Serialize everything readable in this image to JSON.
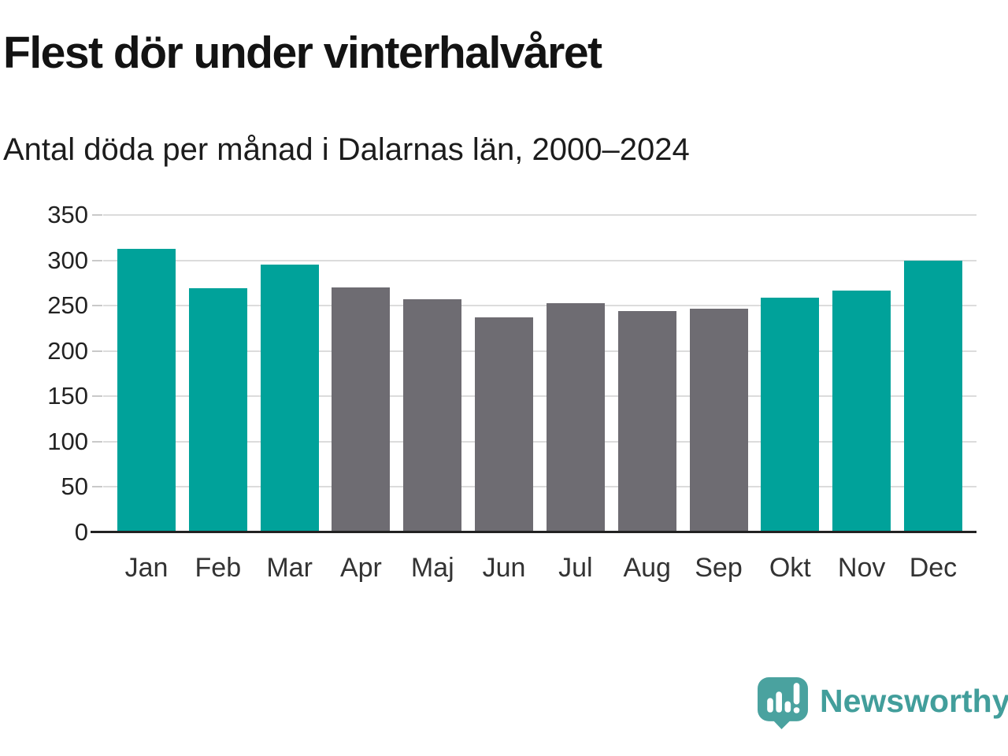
{
  "header": {
    "title": "Flest dör under vinterhalvåret",
    "subtitle": "Antal döda per månad i Dalarnas län, 2000–2024"
  },
  "chart_data": {
    "type": "bar",
    "title": "Flest dör under vinterhalvåret",
    "subtitle": "Antal döda per månad i Dalarnas län, 2000–2024",
    "categories": [
      "Jan",
      "Feb",
      "Mar",
      "Apr",
      "Maj",
      "Jun",
      "Jul",
      "Aug",
      "Sep",
      "Okt",
      "Nov",
      "Dec"
    ],
    "values": [
      313,
      269,
      295,
      270,
      257,
      237,
      253,
      244,
      247,
      259,
      267,
      300
    ],
    "bar_colors": [
      "teal",
      "teal",
      "teal",
      "gray",
      "gray",
      "gray",
      "gray",
      "gray",
      "gray",
      "teal",
      "teal",
      "teal"
    ],
    "xlabel": "",
    "ylabel": "",
    "ylim": [
      0,
      350
    ],
    "yticks": [
      0,
      50,
      100,
      150,
      200,
      250,
      300,
      350
    ],
    "grid": true,
    "legend": false
  },
  "colors": {
    "teal": "#00a29a",
    "gray": "#6e6c72",
    "gridline": "#dcdcdc",
    "axis": "#222222",
    "logo_teal": "#429e9b"
  },
  "logo": {
    "brand": "Newsworthy",
    "icon": "bar-chart-speech-bubble-icon"
  }
}
